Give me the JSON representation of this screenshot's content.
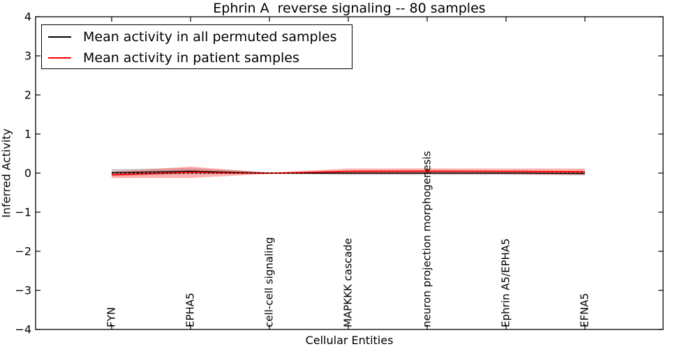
{
  "chart_data": {
    "type": "line",
    "title": "Ephrin A  reverse signaling -- 80 samples",
    "xlabel": "Cellular Entities",
    "ylabel": "Inferred Activity",
    "ylim": [
      -4,
      4
    ],
    "yticks": [
      4,
      3,
      2,
      1,
      0,
      -1,
      -2,
      -3,
      -4
    ],
    "ytick_labels": [
      "4",
      "3",
      "2",
      "1",
      "0",
      "−1",
      "−2",
      "−3",
      "−4"
    ],
    "categories": [
      "FYN",
      "EPHA5",
      "cell-cell signaling",
      "MAPKKK cascade",
      "neuron projection morphogenesis",
      "Ephrin A5/EPHA5",
      "EFNA5"
    ],
    "series": [
      {
        "name": "Mean activity in all permuted samples",
        "color": "#000000",
        "values": [
          0.01,
          0.05,
          0.0,
          0.0,
          0.0,
          0.0,
          -0.01
        ],
        "band_halfwidth": [
          0.09,
          0.08,
          0.02,
          0.045,
          0.045,
          0.045,
          0.05
        ],
        "band_color": "#999999",
        "band_opacity": 0.5
      },
      {
        "name": "Mean activity in patient samples",
        "color": "#ff0000",
        "values": [
          -0.045,
          0.02,
          -0.005,
          0.045,
          0.05,
          0.045,
          0.035
        ],
        "band_halfwidth": [
          0.08,
          0.145,
          0.015,
          0.07,
          0.07,
          0.07,
          0.08
        ],
        "band_color": "#ff5555",
        "band_opacity": 0.45
      }
    ],
    "zero_line": {
      "value": 0,
      "style": "dotted",
      "color": "#000000"
    },
    "legend_position": "upper left",
    "grid": false
  }
}
